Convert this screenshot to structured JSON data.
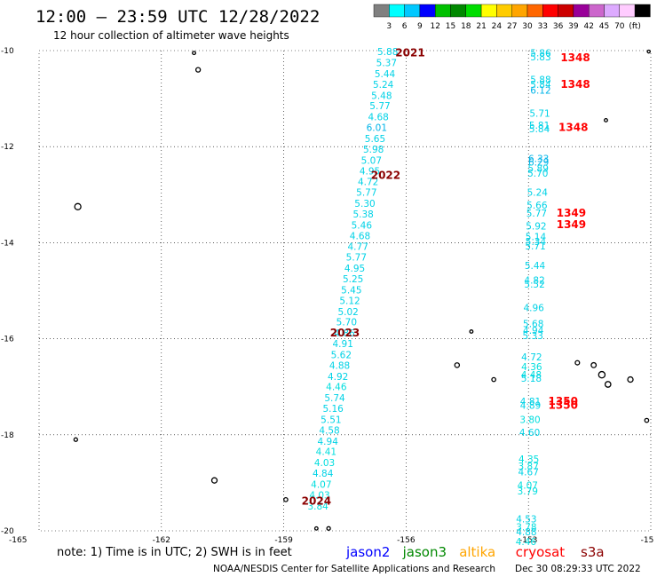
{
  "header": {
    "title": "12:00 – 23:59 UTC 12/28/2022",
    "subtitle": "12 hour collection of altimeter wave heights"
  },
  "color_scale": {
    "colors": [
      "#808080",
      "#00ffff",
      "#00c8ff",
      "#0000ff",
      "#00c000",
      "#008800",
      "#00dd00",
      "#ffff00",
      "#ffcc00",
      "#ffa500",
      "#ff6600",
      "#ff0000",
      "#cc0000",
      "#990099",
      "#cc66cc",
      "#ddaaff",
      "#ffccff",
      "#000000"
    ],
    "labels": [
      "3",
      "6",
      "9",
      "12",
      "15",
      "18",
      "21",
      "24",
      "27",
      "30",
      "33",
      "36",
      "39",
      "42",
      "45",
      "70",
      "(ft)"
    ]
  },
  "chart_data": {
    "type": "scatter",
    "title": "12:00 – 23:59 UTC 12/28/2022",
    "subtitle": "12 hour collection of altimeter wave heights",
    "xlim": [
      -165,
      -150
    ],
    "ylim": [
      -20,
      -10
    ],
    "x_ticks": [
      "-165",
      "-162",
      "-159",
      "-156",
      "-153",
      "-15"
    ],
    "y_ticks": [
      "-10",
      "-12",
      "-14",
      "-16",
      "-18",
      "-20"
    ],
    "grid": "dotted",
    "series": [
      {
        "name": "jason3",
        "points": [
          {
            "lon": -156.45,
            "lat": -10.02,
            "v": "5.88"
          },
          {
            "lon": -156.48,
            "lat": -10.25,
            "v": "5.37"
          },
          {
            "lon": -156.52,
            "lat": -10.48,
            "v": "5.44"
          },
          {
            "lon": -156.56,
            "lat": -10.7,
            "v": "5.24"
          },
          {
            "lon": -156.6,
            "lat": -10.93,
            "v": "5.48"
          },
          {
            "lon": -156.64,
            "lat": -11.15,
            "v": "5.77"
          },
          {
            "lon": -156.68,
            "lat": -11.38,
            "v": "4.68"
          },
          {
            "lon": -156.72,
            "lat": -11.6,
            "v": "6.01"
          },
          {
            "lon": -156.76,
            "lat": -11.83,
            "v": "5.65"
          },
          {
            "lon": -156.8,
            "lat": -12.05,
            "v": "5.98"
          },
          {
            "lon": -156.85,
            "lat": -12.28,
            "v": "5.07"
          },
          {
            "lon": -156.89,
            "lat": -12.5,
            "v": "4.95"
          },
          {
            "lon": -156.93,
            "lat": -12.73,
            "v": "4.72"
          },
          {
            "lon": -156.97,
            "lat": -12.95,
            "v": "5.77"
          },
          {
            "lon": -157.01,
            "lat": -13.18,
            "v": "5.30"
          },
          {
            "lon": -157.05,
            "lat": -13.4,
            "v": "5.38"
          },
          {
            "lon": -157.09,
            "lat": -13.63,
            "v": "5.46"
          },
          {
            "lon": -157.13,
            "lat": -13.85,
            "v": "4.68"
          },
          {
            "lon": -157.18,
            "lat": -14.08,
            "v": "4.77"
          },
          {
            "lon": -157.22,
            "lat": -14.3,
            "v": "5.77"
          },
          {
            "lon": -157.26,
            "lat": -14.53,
            "v": "4.95"
          },
          {
            "lon": -157.3,
            "lat": -14.75,
            "v": "5.25"
          },
          {
            "lon": -157.34,
            "lat": -14.98,
            "v": "5.45"
          },
          {
            "lon": -157.38,
            "lat": -15.2,
            "v": "5.12"
          },
          {
            "lon": -157.42,
            "lat": -15.43,
            "v": "5.02"
          },
          {
            "lon": -157.46,
            "lat": -15.65,
            "v": "5.70"
          },
          {
            "lon": -157.51,
            "lat": -15.88,
            "v": "4.86"
          },
          {
            "lon": -157.55,
            "lat": -16.1,
            "v": "4.91"
          },
          {
            "lon": -157.59,
            "lat": -16.33,
            "v": "5.62"
          },
          {
            "lon": -157.63,
            "lat": -16.55,
            "v": "4.88"
          },
          {
            "lon": -157.67,
            "lat": -16.78,
            "v": "4.92"
          },
          {
            "lon": -157.71,
            "lat": -17.0,
            "v": "4.46"
          },
          {
            "lon": -157.75,
            "lat": -17.23,
            "v": "5.74"
          },
          {
            "lon": -157.79,
            "lat": -17.45,
            "v": "5.16"
          },
          {
            "lon": -157.84,
            "lat": -17.68,
            "v": "5.51"
          },
          {
            "lon": -157.88,
            "lat": -17.9,
            "v": "4.58"
          },
          {
            "lon": -157.92,
            "lat": -18.13,
            "v": "4.94"
          },
          {
            "lon": -157.96,
            "lat": -18.35,
            "v": "4.41"
          },
          {
            "lon": -158.0,
            "lat": -18.58,
            "v": "4.03"
          },
          {
            "lon": -158.04,
            "lat": -18.8,
            "v": "4.84"
          },
          {
            "lon": -158.08,
            "lat": -19.03,
            "v": "4.07"
          },
          {
            "lon": -158.12,
            "lat": -19.25,
            "v": "4.03"
          },
          {
            "lon": -158.16,
            "lat": -19.48,
            "v": "3.84"
          }
        ]
      },
      {
        "name": "jason3",
        "points": [
          {
            "lon": -152.7,
            "lat": -10.05,
            "v": "5.86"
          },
          {
            "lon": -152.7,
            "lat": -10.13,
            "v": "5.83"
          },
          {
            "lon": -152.7,
            "lat": -10.6,
            "v": "5.88"
          },
          {
            "lon": -152.7,
            "lat": -10.7,
            "v": "5.84"
          },
          {
            "lon": -152.7,
            "lat": -10.82,
            "v": "6.12"
          },
          {
            "lon": -152.72,
            "lat": -11.3,
            "v": "5.71"
          },
          {
            "lon": -152.73,
            "lat": -11.55,
            "v": "5.81"
          },
          {
            "lon": -152.73,
            "lat": -11.63,
            "v": "5.84"
          },
          {
            "lon": -152.75,
            "lat": -12.25,
            "v": "6.33"
          },
          {
            "lon": -152.75,
            "lat": -12.32,
            "v": "6.29"
          },
          {
            "lon": -152.76,
            "lat": -12.45,
            "v": "5.89"
          },
          {
            "lon": -152.77,
            "lat": -12.55,
            "v": "5.70"
          },
          {
            "lon": -152.78,
            "lat": -12.95,
            "v": "5.24"
          },
          {
            "lon": -152.79,
            "lat": -13.22,
            "v": "5.66"
          },
          {
            "lon": -152.8,
            "lat": -13.38,
            "v": "5.77"
          },
          {
            "lon": -152.81,
            "lat": -13.65,
            "v": "5.92"
          },
          {
            "lon": -152.82,
            "lat": -13.87,
            "v": "5.14"
          },
          {
            "lon": -152.82,
            "lat": -13.97,
            "v": "5.34"
          },
          {
            "lon": -152.83,
            "lat": -14.07,
            "v": "5.71"
          },
          {
            "lon": -152.84,
            "lat": -14.47,
            "v": "5.44"
          },
          {
            "lon": -152.85,
            "lat": -14.78,
            "v": "4.82"
          },
          {
            "lon": -152.85,
            "lat": -14.86,
            "v": "5.52"
          },
          {
            "lon": -152.87,
            "lat": -15.35,
            "v": "4.96"
          },
          {
            "lon": -152.88,
            "lat": -15.68,
            "v": "5.68"
          },
          {
            "lon": -152.88,
            "lat": -15.82,
            "v": "4.94"
          },
          {
            "lon": -152.89,
            "lat": -15.93,
            "v": "5.33"
          },
          {
            "lon": -152.92,
            "lat": -16.38,
            "v": "4.72"
          },
          {
            "lon": -152.92,
            "lat": -16.58,
            "v": "4.36"
          },
          {
            "lon": -152.93,
            "lat": -16.75,
            "v": "4.48"
          },
          {
            "lon": -152.93,
            "lat": -16.82,
            "v": "5.18"
          },
          {
            "lon": -152.95,
            "lat": -17.3,
            "v": "4.81"
          },
          {
            "lon": -152.95,
            "lat": -17.38,
            "v": "4.89"
          },
          {
            "lon": -152.96,
            "lat": -17.68,
            "v": "3.80"
          },
          {
            "lon": -152.97,
            "lat": -17.95,
            "v": "4.60"
          },
          {
            "lon": -152.99,
            "lat": -18.5,
            "v": "4.35"
          },
          {
            "lon": -153.0,
            "lat": -18.65,
            "v": "3.87"
          },
          {
            "lon": -153.0,
            "lat": -18.77,
            "v": "4.67"
          },
          {
            "lon": -153.02,
            "lat": -19.05,
            "v": "4.07"
          },
          {
            "lon": -153.02,
            "lat": -19.17,
            "v": "3.79"
          },
          {
            "lon": -153.05,
            "lat": -19.75,
            "v": "4.53"
          },
          {
            "lon": -153.05,
            "lat": -19.92,
            "v": "3.78"
          },
          {
            "lon": -153.05,
            "lat": -20.02,
            "v": "4.88"
          },
          {
            "lon": -153.06,
            "lat": -20.22,
            "v": "4.46"
          }
        ]
      }
    ],
    "pass_labels": [
      {
        "text": "2021",
        "lon": -155.9,
        "lat": -10.05,
        "color": "#8b0000"
      },
      {
        "text": "2022",
        "lon": -156.5,
        "lat": -12.6,
        "color": "#8b0000"
      },
      {
        "text": "2023",
        "lon": -157.5,
        "lat": -15.88,
        "color": "#8b0000"
      },
      {
        "text": "2024",
        "lon": -158.2,
        "lat": -19.38,
        "color": "#8b0000"
      },
      {
        "text": "1348",
        "lon": -151.85,
        "lat": -10.15,
        "color": "#ff0000"
      },
      {
        "text": "1348",
        "lon": -151.85,
        "lat": -10.7,
        "color": "#ff0000"
      },
      {
        "text": "1348",
        "lon": -151.9,
        "lat": -11.6,
        "color": "#ff0000"
      },
      {
        "text": "1349",
        "lon": -151.95,
        "lat": -13.38,
        "color": "#ff0000"
      },
      {
        "text": "1349",
        "lon": -151.95,
        "lat": -13.62,
        "color": "#ff0000"
      },
      {
        "text": "1350",
        "lon": -152.15,
        "lat": -17.3,
        "color": "#ff0000"
      },
      {
        "text": "1350",
        "lon": -152.15,
        "lat": -17.38,
        "color": "#ff0000"
      }
    ]
  },
  "footer": {
    "note": "note: 1) Time is in UTC; 2) SWH is in feet",
    "satellites": [
      {
        "name": "jason2",
        "color": "#0000ff"
      },
      {
        "name": "jason3",
        "color": "#008800"
      },
      {
        "name": "altika",
        "color": "#ffa500"
      },
      {
        "name": "cryosat",
        "color": "#ff0000"
      },
      {
        "name": "s3a",
        "color": "#8b0000"
      }
    ],
    "credit": "NOAA/NESDIS Center for Satellite Applications and Research",
    "timestamp": "Dec 30 08:29:33 UTC 2022"
  }
}
